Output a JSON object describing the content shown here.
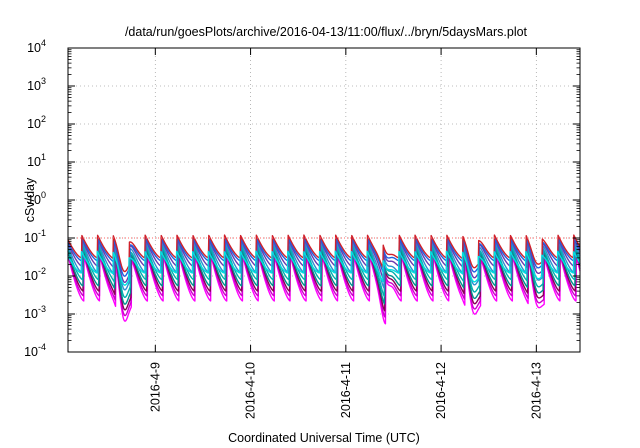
{
  "chart_data": {
    "type": "line",
    "title": "/data/run/goesPlots/archive/2016-04-13/11:00/flux/../bryn/5daysMars.plot",
    "xlabel": "Coordinated Universal Time (UTC)",
    "ylabel": "cSv/day",
    "yscale": "log",
    "ylim": [
      0.0001,
      10000
    ],
    "xlim": [
      "2016-04-08 02:00",
      "2016-04-13 11:00"
    ],
    "grid": true,
    "reference_line": {
      "y": 0.1,
      "color": "#ff6060",
      "style": "dotted"
    },
    "y_ticks": [
      {
        "base": "10",
        "exp": "-4"
      },
      {
        "base": "10",
        "exp": "-3"
      },
      {
        "base": "10",
        "exp": "-2"
      },
      {
        "base": "10",
        "exp": "-1"
      },
      {
        "base": "10",
        "exp": "0"
      },
      {
        "base": "10",
        "exp": "1"
      },
      {
        "base": "10",
        "exp": "2"
      },
      {
        "base": "10",
        "exp": "3"
      },
      {
        "base": "10",
        "exp": "4"
      }
    ],
    "x_ticks": [
      "2016-4-9",
      "2016-4-10",
      "2016-4-11",
      "2016-4-12",
      "2016-4-13"
    ],
    "cycle_hours": 4,
    "dips": [
      {
        "at": "2016-04-08 16:00",
        "depth": 0.9
      },
      {
        "at": "2016-04-11 10:00",
        "depth": 0.6
      },
      {
        "at": "2016-04-12 08:00",
        "depth": 0.7
      },
      {
        "at": "2016-04-13 00:00",
        "depth": 0.5
      }
    ],
    "series": [
      {
        "color": "#ff00ff",
        "peak": 0.035,
        "trough": 0.0022
      },
      {
        "color": "#cc00cc",
        "peak": 0.04,
        "trough": 0.003
      },
      {
        "color": "#880055",
        "peak": 0.05,
        "trough": 0.004
      },
      {
        "color": "#009090",
        "peak": 0.055,
        "trough": 0.0055
      },
      {
        "color": "#00b0b0",
        "peak": 0.065,
        "trough": 0.008
      },
      {
        "color": "#2d8fd0",
        "peak": 0.08,
        "trough": 0.012
      },
      {
        "color": "#6a3ab0",
        "peak": 0.095,
        "trough": 0.018
      },
      {
        "color": "#2060e0",
        "peak": 0.1,
        "trough": 0.025
      },
      {
        "color": "#d0202a",
        "peak": 0.12,
        "trough": 0.03
      },
      {
        "color": "#00e0e0",
        "peak": 0.045,
        "trough": 0.012
      }
    ]
  }
}
